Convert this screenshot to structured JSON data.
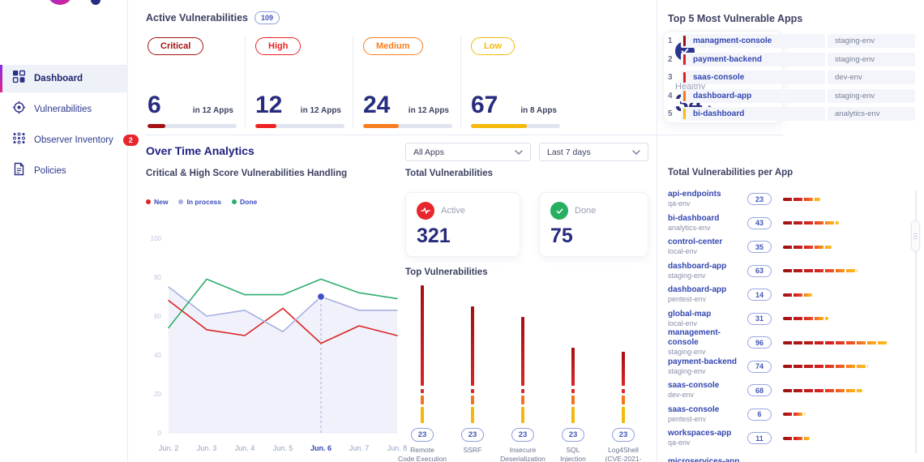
{
  "sidebar": {
    "items": [
      {
        "id": "dashboard",
        "label": "Dashboard",
        "icon": "dashboard-grid-icon",
        "active": true
      },
      {
        "id": "vulnerabilities",
        "label": "Vulnerabilities",
        "icon": "target-icon",
        "active": false
      },
      {
        "id": "observer-inventory",
        "label": "Observer Inventory",
        "icon": "dots-grid-icon",
        "active": false,
        "badge": "2"
      },
      {
        "id": "policies",
        "label": "Policies",
        "icon": "document-icon",
        "active": false
      }
    ]
  },
  "summary": {
    "title": "Active Vulnerabilities",
    "total_badge": "109",
    "stats": [
      {
        "label": "Critical",
        "value": "6",
        "apps": "in 12 Apps",
        "color": "#a61111",
        "fill_pct": 20
      },
      {
        "label": "High",
        "value": "12",
        "apps": "in 12 Apps",
        "color": "#ee2222",
        "fill_pct": 24
      },
      {
        "label": "Medium",
        "value": "24",
        "apps": "in 12 Apps",
        "color": "#f77f22",
        "fill_pct": 40
      },
      {
        "label": "Low",
        "value": "67",
        "apps": "in 8 Apps",
        "color": "#f6b90c",
        "fill_pct": 63
      }
    ],
    "healthy": {
      "label": "Healthy",
      "value": "34",
      "unit": "Apps"
    }
  },
  "top5": {
    "title": "Top 5 Most Vulnerable Apps",
    "rows": [
      {
        "rank": "1",
        "name": "managment-console",
        "env": "staging-env",
        "color": "#9b1010"
      },
      {
        "rank": "2",
        "name": "payment-backend",
        "env": "staging-env",
        "color": "#d32222"
      },
      {
        "rank": "3",
        "name": "saas-console",
        "env": "dev-env",
        "color": "#e02020"
      },
      {
        "rank": "4",
        "name": "dashboard-app",
        "env": "staging-env",
        "color": "#f2791f"
      },
      {
        "rank": "5",
        "name": "bi-dashboard",
        "env": "analytics-env",
        "color": "#f6b90c"
      }
    ]
  },
  "analytics": {
    "title": "Over Time Analytics",
    "filters": {
      "apps": "All Apps",
      "range": "Last 7 days"
    }
  },
  "totals": {
    "title": "Total Vulnerabilities",
    "active": {
      "label": "Active",
      "value": "321",
      "color": "#e8262d"
    },
    "done": {
      "label": "Done",
      "value": "75",
      "color": "#27ae60"
    }
  },
  "chart_data": [
    {
      "type": "line",
      "title": "Critical & High Score Vulnerabilities Handling",
      "categories": [
        "Jun. 2",
        "Jun. 3",
        "Jun. 4",
        "Jun. 5",
        "Jun. 6",
        "Jun. 7",
        "Jun. 8"
      ],
      "series": [
        {
          "name": "New",
          "color": "#d92525",
          "values": [
            68,
            53,
            50,
            64,
            46,
            55,
            50
          ]
        },
        {
          "name": "In process",
          "color": "#a6b0e2",
          "values": [
            75,
            60,
            63,
            52,
            70,
            63,
            63
          ],
          "area": true
        },
        {
          "name": "Done",
          "color": "#2fae6d",
          "values": [
            54,
            79,
            71,
            71,
            79,
            72,
            69
          ]
        }
      ],
      "ylabel": "",
      "xlabel": "",
      "ylim": [
        0,
        100
      ],
      "yticks": [
        0,
        20,
        40,
        60,
        80,
        100
      ],
      "grid": false,
      "legend_position": "top-left",
      "highlight": {
        "category": "Jun. 6",
        "series": "In process",
        "value": 70,
        "dot_color": "#4250c8",
        "dashed_line": true
      }
    },
    {
      "type": "bar",
      "title": "Top Vulnerabilities",
      "categories": [
        "Remote\nCode Execution",
        "SSRF",
        "Insecure\nDeserialization",
        "SQL\nInjection",
        "Log4Shell\n(CVE-2021-"
      ],
      "values": [
        23,
        23,
        23,
        23,
        23
      ],
      "bar_height_pcts": [
        100,
        85,
        77,
        55,
        52
      ],
      "badge_labels": [
        "23",
        "23",
        "23",
        "23",
        "23"
      ],
      "ylim": [
        0,
        100
      ],
      "grid": false
    }
  ],
  "per_app": {
    "title": "Total Vulnerabilities per App",
    "rows": [
      {
        "name": "api-endpoints",
        "env": "qa-env",
        "count": "23"
      },
      {
        "name": "bi-dashboard",
        "env": "analytics-env",
        "count": "43"
      },
      {
        "name": "control-center",
        "env": "local-env",
        "count": "35"
      },
      {
        "name": "dashboard-app",
        "env": "staging-env",
        "count": "63"
      },
      {
        "name": "dashboard-app",
        "env": "pentest-env",
        "count": "14"
      },
      {
        "name": "global-map",
        "env": "local-env",
        "count": "31"
      },
      {
        "name": "management-console",
        "env": "staging-env",
        "count": "96"
      },
      {
        "name": "payment-backend",
        "env": "staging-env",
        "count": "74"
      },
      {
        "name": "saas-console",
        "env": "dev-env",
        "count": "68"
      },
      {
        "name": "saas-console",
        "env": "pentest-env",
        "count": "6"
      },
      {
        "name": "workspaces-app",
        "env": "qa-env",
        "count": "11"
      },
      {
        "name": "microservices-app",
        "env": "",
        "count": ""
      }
    ]
  }
}
